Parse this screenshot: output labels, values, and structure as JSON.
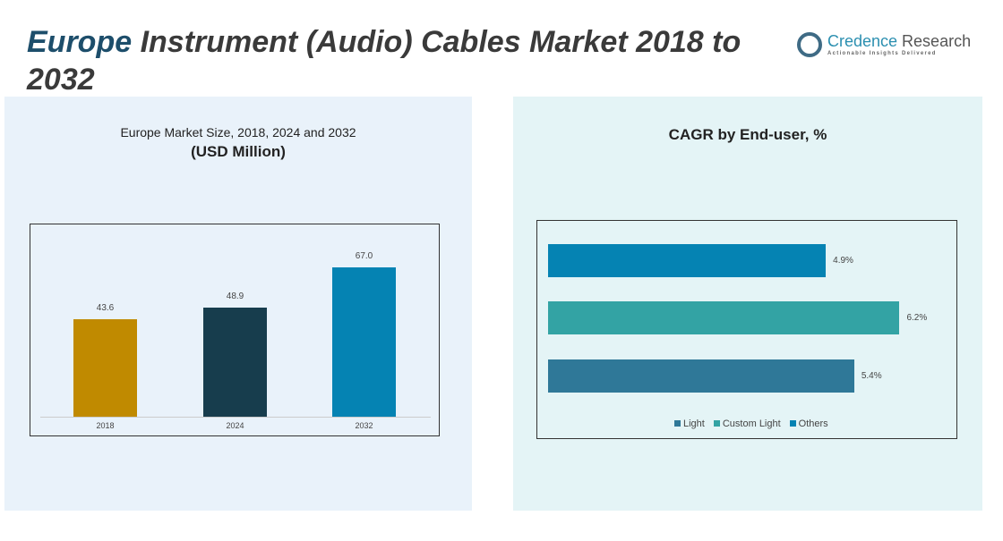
{
  "header": {
    "title_highlight": "Europe",
    "title_rest": " Instrument (Audio) Cables Market 2018 to 2032"
  },
  "logo": {
    "name_a": "Credence",
    "name_b": " Research",
    "tagline": "Actionable Insights Delivered"
  },
  "chart_data": [
    {
      "type": "bar",
      "title": "Europe Market Size, 2018, 2024 and 2032",
      "subtitle": "(USD Million)",
      "categories": [
        "2018",
        "2024",
        "2032"
      ],
      "values": [
        43.6,
        48.9,
        67.0
      ],
      "labels": [
        "43.6",
        "48.9",
        "67.0"
      ],
      "colors": [
        "#c08a00",
        "#173d4d",
        "#0583b3"
      ],
      "ylim": [
        0,
        75
      ]
    },
    {
      "type": "bar",
      "orientation": "horizontal",
      "title": "CAGR by End-user, %",
      "categories": [
        "Others",
        "Custom Light",
        "Light"
      ],
      "values": [
        4.9,
        6.2,
        5.4
      ],
      "labels": [
        "4.9%",
        "6.2%",
        "5.4%"
      ],
      "colors": [
        "#0583b3",
        "#33a3a4",
        "#2f7898"
      ],
      "xlim": [
        0,
        7
      ],
      "legend": {
        "position": "bottom",
        "items": [
          {
            "label": "Light",
            "color": "#2f7898"
          },
          {
            "label": "Custom Light",
            "color": "#33a3a4"
          },
          {
            "label": "Others",
            "color": "#0583b3"
          }
        ]
      }
    }
  ]
}
